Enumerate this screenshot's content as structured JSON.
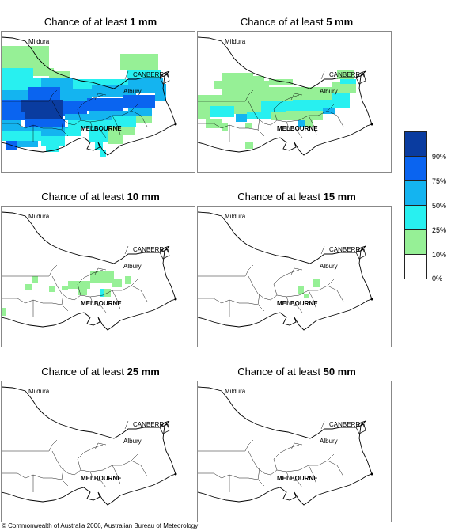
{
  "panels": [
    {
      "prefix": "Chance of at least ",
      "amount": "1 mm"
    },
    {
      "prefix": "Chance of at least ",
      "amount": "5 mm"
    },
    {
      "prefix": "Chance of at least ",
      "amount": "10 mm"
    },
    {
      "prefix": "Chance of at least ",
      "amount": "15 mm"
    },
    {
      "prefix": "Chance of at least ",
      "amount": "25 mm"
    },
    {
      "prefix": "Chance of at least ",
      "amount": "50 mm"
    }
  ],
  "cities": {
    "mildura": "Mildura",
    "canberra": "CANBERRA",
    "albury": "Albury",
    "melbourne": "MELBOURNE"
  },
  "legend": {
    "labels": [
      "90%",
      "75%",
      "50%",
      "25%",
      "10%",
      "0%"
    ],
    "colors": [
      "#0a3ca0",
      "#0a64f0",
      "#14b4f0",
      "#28f0f0",
      "#96f096",
      "#ffffff"
    ]
  },
  "coverage": {
    "panel_1": "heavy",
    "panel_2": "moderate",
    "panel_3": "light",
    "panel_4": "trace",
    "panel_5": "none",
    "panel_6": "none"
  },
  "footer": "© Commonwealth of Australia 2006, Australian Bureau of Meteorology"
}
